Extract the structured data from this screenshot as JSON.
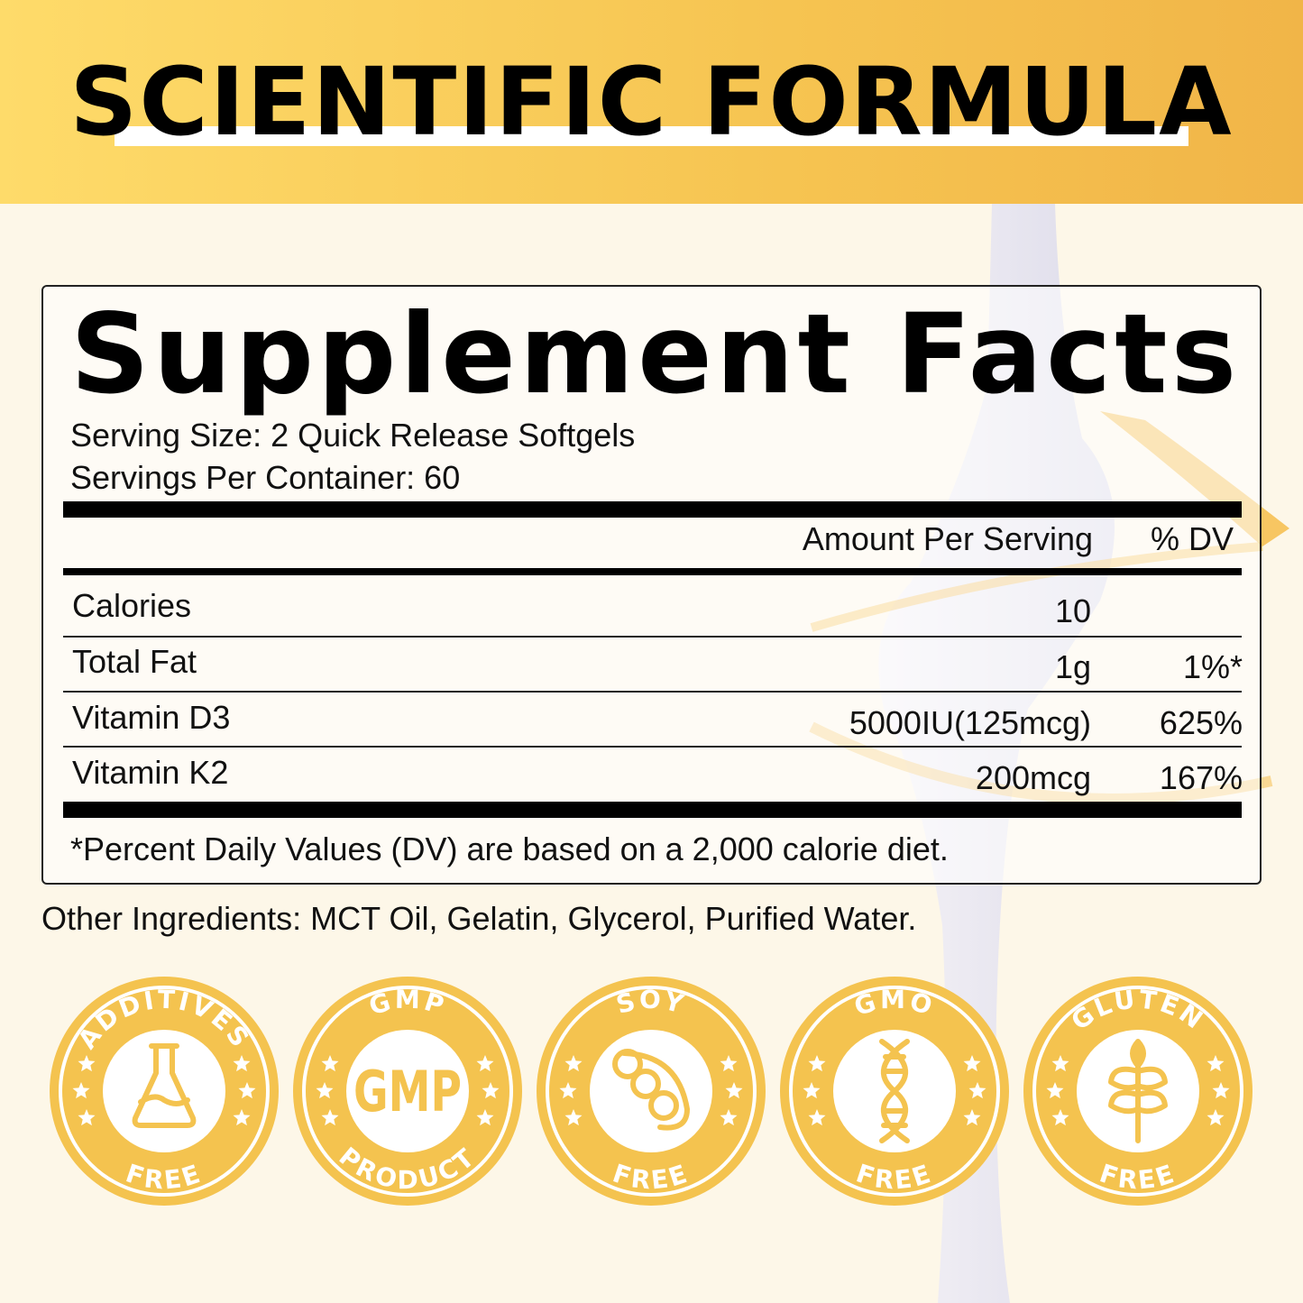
{
  "header": {
    "title": "SCIENTIFIC FORMULA"
  },
  "facts": {
    "title": "Supplement Facts",
    "serving_size": "Serving Size: 2 Quick Release Softgels",
    "servings_per_container": "Servings Per Container: 60",
    "col_amount": "Amount Per Serving",
    "col_dv": "% DV",
    "rows": [
      {
        "name": "Calories",
        "amount": "10",
        "dv": ""
      },
      {
        "name": "Total Fat",
        "amount": "1g",
        "dv": "1%*"
      },
      {
        "name": "Vitamin D3",
        "amount": "5000IU(125mcg)",
        "dv": "625%"
      },
      {
        "name": "Vitamin K2",
        "amount": "200mcg",
        "dv": "167%"
      }
    ],
    "footnote": "*Percent Daily Values (DV) are based on a 2,000 calorie diet."
  },
  "other_ingredients": "Other Ingredients: MCT Oil, Gelatin, Glycerol, Purified Water.",
  "badges": [
    {
      "top": "ADDITIVES",
      "bottom": "FREE",
      "icon": "flask-icon"
    },
    {
      "top": "GMP",
      "bottom": "PRODUCT",
      "icon": "gmp-text-icon",
      "center": "GMP"
    },
    {
      "top": "SOY",
      "bottom": "FREE",
      "icon": "soybean-icon"
    },
    {
      "top": "GMO",
      "bottom": "FREE",
      "icon": "dna-icon"
    },
    {
      "top": "GLUTEN",
      "bottom": "FREE",
      "icon": "wheat-icon"
    }
  ],
  "colors": {
    "header": "#f6c451",
    "badge": "#f4c34f",
    "background": "#fdf7e8"
  }
}
